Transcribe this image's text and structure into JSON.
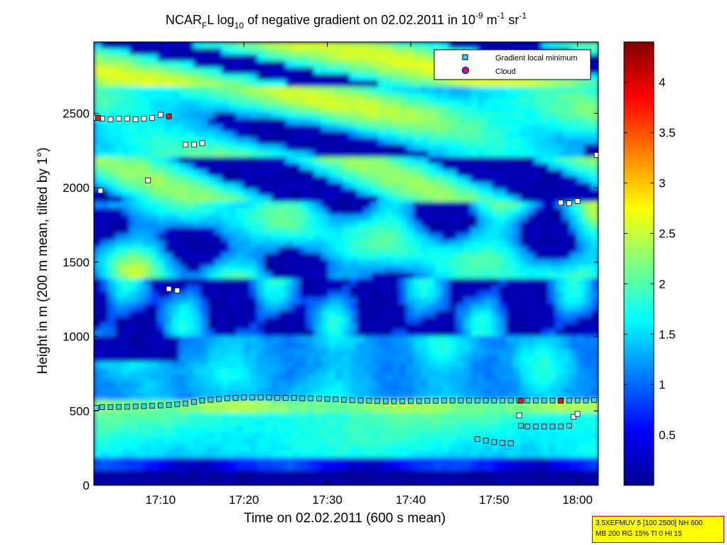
{
  "figure": {
    "title_prefix": "NCAR",
    "title_sub_f": "F",
    "title_l": "L log",
    "title_sub_10": "10",
    "title_mid": " of negative gradient on 02.02.2011 in 10",
    "title_sup_exp": "-9",
    "title_unit_m": " m",
    "title_sup_m": "-1",
    "title_unit_sr": " sr",
    "title_sup_sr": "-1",
    "xlabel": "Time on 02.02.2011 (600 s mean)",
    "ylabel": "Height in m (200 m mean, tilted by 1°)"
  },
  "legend": {
    "items": [
      {
        "label": "Gradient local minimum",
        "marker": "square",
        "color": "#33d6e6"
      },
      {
        "label": "Cloud",
        "marker": "circle",
        "color": "#cc2222"
      }
    ]
  },
  "info_box": {
    "line1": "3.5XEFMUV 5 [100 2500] NH 600",
    "line2": "MB 200 RG 15% TI 0 HI 15"
  },
  "colorbar": {
    "ticks": [
      "0.5",
      "1",
      "1.5",
      "2",
      "2.5",
      "3",
      "3.5",
      "4"
    ],
    "tick_values": [
      0.5,
      1,
      1.5,
      2,
      2.5,
      3,
      3.5,
      4
    ],
    "range": [
      0,
      4.4
    ],
    "colormap": "jet"
  },
  "chart_data": {
    "type": "heatmap",
    "title": "NCAR_F L log_10 of negative gradient on 02.02.2011 in 10^-9 m^-1 sr^-1",
    "xlabel": "Time on 02.02.2011 (600 s mean)",
    "ylabel": "Height in m (200 m mean, tilted by 1°)",
    "x_ticks": [
      "17:10",
      "17:20",
      "17:30",
      "17:40",
      "17:50",
      "18:00"
    ],
    "x_tick_minutes": [
      70,
      80,
      90,
      100,
      110,
      120
    ],
    "xlim_minutes": [
      62,
      122.5
    ],
    "y_ticks": [
      "0",
      "500",
      "1000",
      "1500",
      "2000",
      "2500"
    ],
    "y_tick_values": [
      0,
      500,
      1000,
      1500,
      2000,
      2500
    ],
    "ylim": [
      0,
      2980
    ],
    "layers": [
      {
        "height_range": [
          0,
          170
        ],
        "value": 0.2
      },
      {
        "height_range": [
          170,
          480
        ],
        "value": 1.9
      },
      {
        "height_range": [
          480,
          580
        ],
        "value": 2.3
      },
      {
        "height_range": [
          580,
          1000
        ],
        "value": 1.3
      },
      {
        "height_range": [
          1000,
          1600
        ],
        "value": 1.4
      },
      {
        "height_range": [
          1600,
          2400
        ],
        "value": 2.0
      },
      {
        "height_range": [
          2400,
          2980
        ],
        "value": 2.3
      }
    ],
    "series": [
      {
        "name": "Gradient local minimum",
        "marker": "square",
        "points": [
          [
            62.3,
            520
          ],
          [
            63,
            525
          ],
          [
            64,
            525
          ],
          [
            65,
            527
          ],
          [
            66,
            528
          ],
          [
            67,
            530
          ],
          [
            68,
            532
          ],
          [
            69,
            535
          ],
          [
            70,
            537
          ],
          [
            71,
            540
          ],
          [
            72,
            545
          ],
          [
            73,
            550
          ],
          [
            74,
            560
          ],
          [
            75,
            570
          ],
          [
            76,
            575
          ],
          [
            77,
            580
          ],
          [
            78,
            585
          ],
          [
            79,
            588
          ],
          [
            80,
            590
          ],
          [
            81,
            590
          ],
          [
            82,
            590
          ],
          [
            83,
            590
          ],
          [
            84,
            588
          ],
          [
            85,
            588
          ],
          [
            86,
            587
          ],
          [
            87,
            585
          ],
          [
            88,
            585
          ],
          [
            89,
            583
          ],
          [
            90,
            580
          ],
          [
            91,
            578
          ],
          [
            92,
            575
          ],
          [
            93,
            572
          ],
          [
            94,
            570
          ],
          [
            95,
            568
          ],
          [
            96,
            566
          ],
          [
            97,
            565
          ],
          [
            98,
            565
          ],
          [
            99,
            565
          ],
          [
            100,
            566
          ],
          [
            101,
            566
          ],
          [
            102,
            568
          ],
          [
            103,
            568
          ],
          [
            104,
            570
          ],
          [
            105,
            570
          ],
          [
            106,
            570
          ],
          [
            107,
            570
          ],
          [
            108,
            570
          ],
          [
            109,
            570
          ],
          [
            110,
            570
          ],
          [
            111,
            570
          ],
          [
            112,
            570
          ],
          [
            113,
            570
          ],
          [
            114,
            570
          ],
          [
            115,
            570
          ],
          [
            116,
            570
          ],
          [
            117,
            570
          ],
          [
            118,
            570
          ],
          [
            119,
            570
          ],
          [
            120,
            570
          ],
          [
            121,
            570
          ],
          [
            122,
            572
          ],
          [
            62.3,
            2470
          ],
          [
            63,
            2465
          ],
          [
            64,
            2460
          ],
          [
            65,
            2465
          ],
          [
            66,
            2465
          ],
          [
            67,
            2460
          ],
          [
            68,
            2465
          ],
          [
            69,
            2470
          ],
          [
            70,
            2490
          ],
          [
            73,
            2290
          ],
          [
            74,
            2290
          ],
          [
            75,
            2300
          ],
          [
            68.5,
            2050
          ],
          [
            62.8,
            1980
          ],
          [
            71,
            1320
          ],
          [
            72,
            1310
          ],
          [
            118,
            1900
          ],
          [
            119,
            1895
          ],
          [
            120,
            1910
          ],
          [
            122.3,
            2220
          ],
          [
            108,
            310
          ],
          [
            109,
            300
          ],
          [
            110,
            290
          ],
          [
            111,
            285
          ],
          [
            112,
            283
          ],
          [
            113,
            470
          ],
          [
            113.2,
            400
          ],
          [
            114,
            395
          ],
          [
            115,
            395
          ],
          [
            116,
            395
          ],
          [
            117,
            395
          ],
          [
            118,
            395
          ],
          [
            119,
            400
          ],
          [
            119.5,
            460
          ],
          [
            120,
            480
          ]
        ]
      },
      {
        "name": "Cloud",
        "marker": "circle",
        "points": [
          [
            71,
            2480
          ],
          [
            62.5,
            2470
          ],
          [
            113.2,
            568
          ],
          [
            118,
            568
          ]
        ]
      }
    ],
    "grid": false,
    "legend_position": "top-right"
  }
}
